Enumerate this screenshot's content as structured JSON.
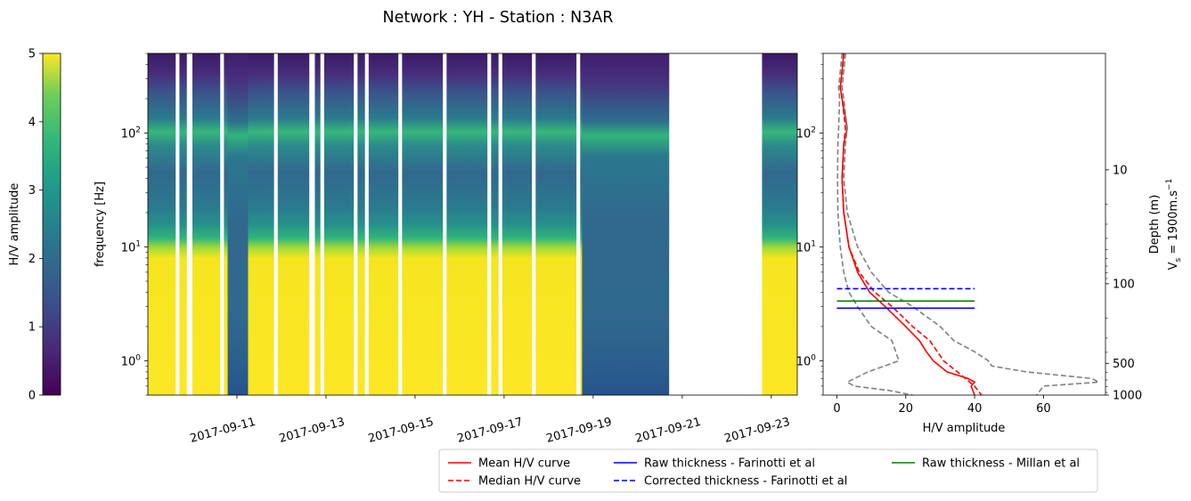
{
  "title": "Network : YH - Station : N3AR",
  "colorbar": {
    "label": "H/V amplitude",
    "ticks": [
      "0",
      "1",
      "2",
      "3",
      "4",
      "5"
    ],
    "range": [
      0,
      5
    ],
    "colormap": "viridis"
  },
  "spectrogram": {
    "ylabel": "frequency [Hz]",
    "ytick_labels": [
      "10",
      "10",
      "10"
    ],
    "ytick_exponents": [
      "0",
      "1",
      "2"
    ],
    "xtick_labels": [
      "2017-09-11",
      "2017-09-13",
      "2017-09-15",
      "2017-09-17",
      "2017-09-19",
      "2017-09-21",
      "2017-09-23"
    ]
  },
  "profile": {
    "xlabel": "H/V amplitude",
    "xtick_labels": [
      "0",
      "20",
      "40",
      "60"
    ],
    "ytick_labels": [
      "10",
      "10",
      "10"
    ],
    "ytick_exponents": [
      "0",
      "1",
      "2"
    ],
    "right_ylabel_1": "Depth (m)",
    "right_ylabel_2": "V",
    "right_ylabel_2_sub": "s",
    "right_ylabel_2_rest": " = 1900m.s",
    "right_ylabel_2_sup": "−1",
    "depth_ticks": [
      "10",
      "100",
      "500",
      "1000"
    ]
  },
  "legend": {
    "items": [
      {
        "label": "Mean H/V curve",
        "color": "#ff0000",
        "dash": "solid"
      },
      {
        "label": "Median H/V curve",
        "color": "#ff0000",
        "dash": "dashed"
      },
      {
        "label": "Raw thickness - Farinotti et al",
        "color": "#0000ff",
        "dash": "solid"
      },
      {
        "label": "Corrected thickness - Farinotti et al",
        "color": "#0000ff",
        "dash": "dashed"
      },
      {
        "label": "Raw thickness - Millan et al",
        "color": "#008000",
        "dash": "solid"
      }
    ]
  },
  "chart_data": [
    {
      "type": "heatmap",
      "title": "Network : YH - Station : N3AR",
      "xlabel": "",
      "ylabel": "frequency [Hz]",
      "yscale": "log",
      "ylim": [
        0.5,
        500
      ],
      "xlim": [
        "2017-09-09",
        "2017-09-23 14:00"
      ],
      "zlabel": "H/V amplitude",
      "zlim": [
        0,
        5
      ],
      "colormap": "viridis",
      "resonance_band_hz": 90,
      "data_gaps": [
        {
          "start": "2017-09-09 15:00",
          "end": "2017-09-09 17:00"
        },
        {
          "start": "2017-09-09 21:00",
          "end": "2017-09-10 00:00"
        },
        {
          "start": "2017-09-10 15:00",
          "end": "2017-09-10 17:00"
        },
        {
          "start": "2017-09-11 20:00",
          "end": "2017-09-11 22:00"
        },
        {
          "start": "2017-09-12 15:00",
          "end": "2017-09-12 18:00"
        },
        {
          "start": "2017-09-12 21:00",
          "end": "2017-09-12 23:00"
        },
        {
          "start": "2017-09-13 15:00",
          "end": "2017-09-13 17:00"
        },
        {
          "start": "2017-09-13 21:00",
          "end": "2017-09-13 23:00"
        },
        {
          "start": "2017-09-14 15:00",
          "end": "2017-09-14 17:00"
        },
        {
          "start": "2017-09-15 15:00",
          "end": "2017-09-15 17:00"
        },
        {
          "start": "2017-09-16 15:00",
          "end": "2017-09-16 17:00"
        },
        {
          "start": "2017-09-16 21:00",
          "end": "2017-09-16 23:00"
        },
        {
          "start": "2017-09-17 15:00",
          "end": "2017-09-17 17:00"
        },
        {
          "start": "2017-09-18 15:00",
          "end": "2017-09-18 17:00"
        },
        {
          "start": "2017-09-20 17:00",
          "end": "2017-09-22 19:00"
        }
      ],
      "low_amplitude_periods": [
        {
          "start": "2017-09-10 19:00",
          "end": "2017-09-11 06:00"
        },
        {
          "start": "2017-09-18 18:00",
          "end": "2017-09-20 17:00"
        }
      ]
    },
    {
      "type": "line",
      "xlabel": "H/V amplitude",
      "ylabel": "",
      "yscale": "log",
      "ylim": [
        0.5,
        500
      ],
      "xlim": [
        -4,
        78
      ],
      "series": [
        {
          "name": "Mean H/V curve",
          "color": "#ff0000",
          "dash": "solid",
          "x": [
            2,
            1.5,
            1.0,
            1.5,
            3.0,
            2.0,
            1.5,
            2.0,
            3.5,
            6.0,
            9.5,
            14,
            20,
            24,
            26,
            28,
            32,
            38,
            40,
            39,
            40
          ],
          "y": [
            500,
            350,
            250,
            200,
            110,
            80,
            40,
            20,
            10,
            6,
            4,
            3,
            2,
            1.5,
            1.2,
            1.0,
            0.8,
            0.7,
            0.65,
            0.6,
            0.5
          ]
        },
        {
          "name": "Median H/V curve",
          "color": "#ff0000",
          "dash": "dashed",
          "x": [
            2,
            1.5,
            1.0,
            1.5,
            2.5,
            2.0,
            1.5,
            2.0,
            3.5,
            6.5,
            11,
            16,
            22,
            27,
            31,
            35,
            40,
            42
          ],
          "y": [
            500,
            350,
            250,
            200,
            110,
            80,
            40,
            20,
            10,
            6,
            4,
            3,
            2,
            1.5,
            1.0,
            0.8,
            0.6,
            0.5
          ]
        },
        {
          "name": "",
          "color": "#808080",
          "dash": "dashed",
          "x": [
            1.5,
            1.0,
            0.5,
            0.8,
            0.5,
            0.3,
            0.2,
            0.3,
            1.0,
            2.0,
            3.5,
            6.0,
            10,
            16,
            18,
            9,
            3,
            5,
            15,
            22
          ],
          "y": [
            500,
            350,
            250,
            200,
            110,
            80,
            40,
            20,
            10,
            6,
            4,
            3,
            2,
            1.5,
            1.0,
            0.8,
            0.65,
            0.6,
            0.55,
            0.5
          ]
        },
        {
          "name": "",
          "color": "#808080",
          "dash": "dashed",
          "x": [
            2.5,
            2.0,
            1.5,
            2.0,
            3.0,
            2.5,
            2.0,
            3.0,
            6.0,
            10,
            15,
            22,
            30,
            34,
            40,
            44,
            45,
            55,
            74,
            76,
            60,
            58
          ],
          "y": [
            500,
            350,
            250,
            200,
            110,
            80,
            40,
            20,
            10,
            6,
            4,
            3,
            2,
            1.5,
            1.2,
            1.0,
            0.9,
            0.8,
            0.7,
            0.65,
            0.6,
            0.5
          ]
        },
        {
          "name": "Raw thickness - Farinotti et al",
          "color": "#0000ff",
          "dash": "solid",
          "x": [
            0,
            40
          ],
          "y": [
            2.9,
            2.9
          ]
        },
        {
          "name": "Corrected thickness - Farinotti et al",
          "color": "#0000ff",
          "dash": "dashed",
          "x": [
            0,
            40
          ],
          "y": [
            4.3,
            4.3
          ]
        },
        {
          "name": "Raw thickness - Millan et al",
          "color": "#008000",
          "dash": "solid",
          "x": [
            0,
            40
          ],
          "y": [
            3.35,
            3.35
          ]
        }
      ],
      "secondary_yaxis": {
        "label": "Depth (m) / V_s = 1900m.s^-1",
        "ticks": [
          10,
          100,
          500,
          1000
        ]
      }
    }
  ]
}
